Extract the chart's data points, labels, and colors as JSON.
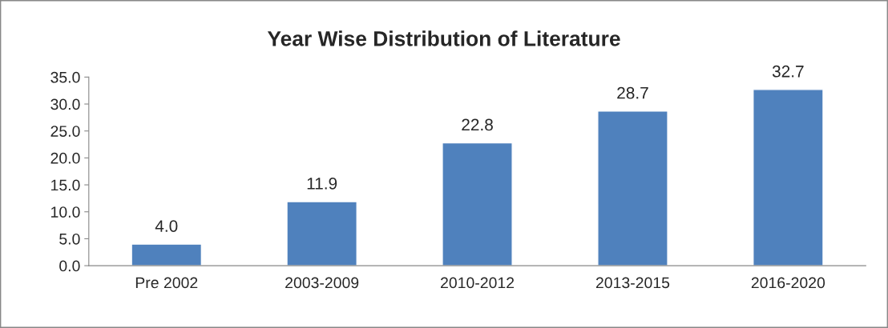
{
  "chart_data": {
    "type": "bar",
    "title": "Year Wise Distribution of Literature",
    "categories": [
      "Pre 2002",
      "2003-2009",
      "2010-2012",
      "2013-2015",
      "2016-2020"
    ],
    "values": [
      4.0,
      11.9,
      22.8,
      28.7,
      32.7
    ],
    "value_labels": [
      "4.0",
      "11.9",
      "22.8",
      "28.7",
      "32.7"
    ],
    "color": "#4f81bd",
    "ylim": [
      0,
      35
    ],
    "yticks": [
      {
        "value": 0,
        "label": "0.0"
      },
      {
        "value": 5,
        "label": "5.0"
      },
      {
        "value": 10,
        "label": "10.0"
      },
      {
        "value": 15,
        "label": "15.0"
      },
      {
        "value": 20,
        "label": "20.0"
      },
      {
        "value": 25,
        "label": "25.0"
      },
      {
        "value": 30,
        "label": "30.0"
      },
      {
        "value": 35,
        "label": "35.0"
      }
    ],
    "grid": false,
    "legend": false
  }
}
